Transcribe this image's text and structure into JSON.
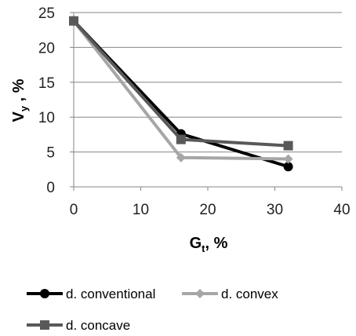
{
  "chart_data": {
    "type": "line",
    "title": "",
    "xlabel": {
      "main": "G",
      "sub": "t",
      "suffix": ", %"
    },
    "ylabel": {
      "main": "V",
      "sub": "y",
      "suffix": " , %"
    },
    "xlim": [
      0,
      40
    ],
    "ylim": [
      0,
      25
    ],
    "xticks": [
      0,
      10,
      20,
      30,
      40
    ],
    "yticks": [
      0,
      5,
      10,
      15,
      20,
      25
    ],
    "grid": "horizontal",
    "legend_position": "bottom",
    "series": [
      {
        "name": "d. conventional",
        "x": [
          0,
          16,
          32
        ],
        "y": [
          23.8,
          7.6,
          2.9
        ],
        "color": "#000000",
        "marker": "circle"
      },
      {
        "name": "d. convex",
        "x": [
          0,
          16,
          32
        ],
        "y": [
          23.8,
          4.2,
          4.0
        ],
        "color": "#a6a6a6",
        "marker": "diamond"
      },
      {
        "name": "d. concave",
        "x": [
          0,
          16,
          32
        ],
        "y": [
          23.8,
          6.8,
          5.9
        ],
        "color": "#595959",
        "marker": "square"
      }
    ]
  }
}
